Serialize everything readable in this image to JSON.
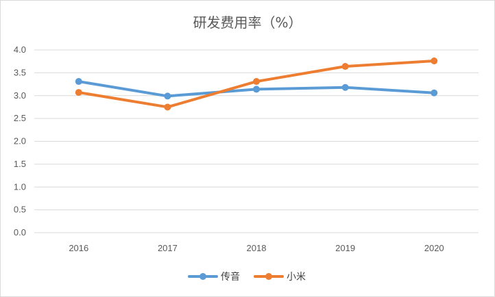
{
  "chart_data": {
    "type": "line",
    "title": "研发费用率（%）",
    "categories": [
      "2016",
      "2017",
      "2018",
      "2019",
      "2020"
    ],
    "yticks": [
      "0.0",
      "0.5",
      "1.0",
      "1.5",
      "2.0",
      "2.5",
      "3.0",
      "3.5",
      "4.0"
    ],
    "ylim": [
      0,
      4
    ],
    "grid": true,
    "legend_position": "bottom",
    "series": [
      {
        "name": "传音",
        "color": "#5b9bd5",
        "values": [
          3.31,
          2.99,
          3.14,
          3.18,
          3.06
        ]
      },
      {
        "name": "小米",
        "color": "#ed7d31",
        "values": [
          3.07,
          2.75,
          3.31,
          3.64,
          3.76
        ]
      }
    ]
  }
}
